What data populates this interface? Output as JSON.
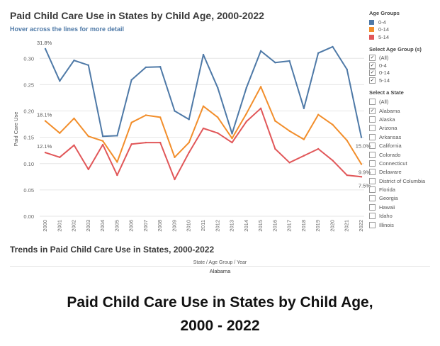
{
  "dashboard": {
    "title": "Paid Child Care Use in States by Child Age, 2000-2022",
    "subtitle": "Hover across the lines for more detail",
    "trend_title": "Trends in Paid Child Care Use in States, 2000-2022",
    "header_label": "State / Age Group / Year",
    "header_value": "Alabama"
  },
  "legend": {
    "age_groups_title": "Age Groups",
    "age_groups": [
      {
        "label": "0-4",
        "color": "#4e79a7"
      },
      {
        "label": "0-14",
        "color": "#f28e2b"
      },
      {
        "label": "5-14",
        "color": "#e15759"
      }
    ],
    "select_age_title": "Select Age Group (s)",
    "select_age_options": [
      {
        "label": "(All)",
        "checked": true
      },
      {
        "label": "0-4",
        "checked": true
      },
      {
        "label": "0-14",
        "checked": true
      },
      {
        "label": "5-14",
        "checked": true
      }
    ],
    "select_state_title": "Select a State",
    "states": [
      {
        "label": "(All)",
        "checked": false
      },
      {
        "label": "Alabama",
        "checked": true
      },
      {
        "label": "Alaska",
        "checked": false
      },
      {
        "label": "Arizona",
        "checked": false
      },
      {
        "label": "Arkansas",
        "checked": false
      },
      {
        "label": "California",
        "checked": false
      },
      {
        "label": "Colorado",
        "checked": false
      },
      {
        "label": "Connecticut",
        "checked": false
      },
      {
        "label": "Delaware",
        "checked": false
      },
      {
        "label": "District of Columbia",
        "checked": false
      },
      {
        "label": "Florida",
        "checked": false
      },
      {
        "label": "Georgia",
        "checked": false
      },
      {
        "label": "Hawaii",
        "checked": false
      },
      {
        "label": "Idaho",
        "checked": false
      },
      {
        "label": "Illinois",
        "checked": false
      }
    ]
  },
  "chart_data": {
    "type": "line",
    "title": "Paid Child Care Use in States by Child Age, 2000-2022",
    "ylabel": "Paid Care Use",
    "xlabel": "",
    "ylim": [
      0,
      0.33
    ],
    "yticks": [
      0.0,
      0.05,
      0.1,
      0.15,
      0.2,
      0.25,
      0.3
    ],
    "ytick_labels": [
      "0.00",
      "0.05",
      "0.10",
      "0.15",
      "0.20",
      "0.25",
      "0.30"
    ],
    "grid": true,
    "x": [
      "2000",
      "2001",
      "2002",
      "2003",
      "2004",
      "2005",
      "2006",
      "2007",
      "2008",
      "2009",
      "2010",
      "2011",
      "2012",
      "2013",
      "2014",
      "2015",
      "2016",
      "2017",
      "2018",
      "2019",
      "2020",
      "2021",
      "2022"
    ],
    "series": [
      {
        "name": "0-4",
        "color": "#4e79a7",
        "values": [
          0.318,
          0.257,
          0.296,
          0.287,
          0.152,
          0.153,
          0.259,
          0.283,
          0.284,
          0.2,
          0.184,
          0.307,
          0.244,
          0.157,
          0.244,
          0.314,
          0.292,
          0.295,
          0.205,
          0.31,
          0.322,
          0.279,
          0.15
        ]
      },
      {
        "name": "0-14",
        "color": "#f28e2b",
        "values": [
          0.181,
          0.158,
          0.186,
          0.152,
          0.143,
          0.103,
          0.178,
          0.192,
          0.188,
          0.112,
          0.14,
          0.209,
          0.188,
          0.148,
          0.195,
          0.246,
          0.181,
          0.162,
          0.146,
          0.193,
          0.174,
          0.144,
          0.099
        ]
      },
      {
        "name": "5-14",
        "color": "#e15759",
        "values": [
          0.121,
          0.112,
          0.135,
          0.089,
          0.136,
          0.078,
          0.137,
          0.14,
          0.14,
          0.07,
          0.121,
          0.167,
          0.158,
          0.14,
          0.18,
          0.205,
          0.128,
          0.102,
          0.115,
          0.128,
          0.106,
          0.078,
          0.075
        ]
      }
    ],
    "annotations": [
      {
        "series": "0-4",
        "year": "2000",
        "text": "31.8%"
      },
      {
        "series": "0-14",
        "year": "2000",
        "text": "18.1%"
      },
      {
        "series": "5-14",
        "year": "2000",
        "text": "12.1%"
      },
      {
        "series": "0-4",
        "year": "2022",
        "text": "15.0%"
      },
      {
        "series": "0-14",
        "year": "2022",
        "text": "9.9%"
      },
      {
        "series": "5-14",
        "year": "2022",
        "text": "7.5%"
      }
    ]
  },
  "caption": {
    "line1": "Paid Child Care Use in States by Child Age,",
    "line2": "2000 - 2022"
  }
}
